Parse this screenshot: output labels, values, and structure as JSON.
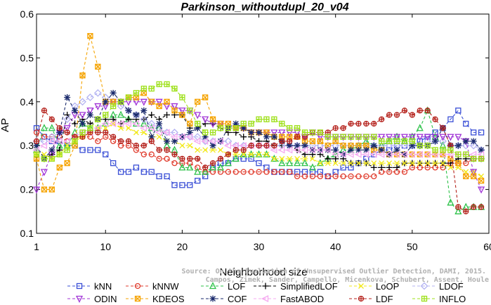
{
  "chart_data": {
    "type": "line",
    "title": "Parkinson_withoutdupl_20_v04",
    "xlabel": "Neighborhood size",
    "ylabel": "AP",
    "xlim": [
      1,
      60
    ],
    "ylim": [
      0.1,
      0.6
    ],
    "xticks": [
      1,
      10,
      20,
      30,
      40,
      50,
      60
    ],
    "yticks": [
      0.1,
      0.2,
      0.3,
      0.4,
      0.5,
      0.6
    ],
    "grid": false,
    "legend_position": "bottom",
    "x": [
      1,
      2,
      3,
      4,
      5,
      6,
      7,
      8,
      9,
      10,
      11,
      12,
      13,
      14,
      15,
      16,
      17,
      18,
      19,
      20,
      21,
      22,
      23,
      24,
      25,
      26,
      27,
      28,
      29,
      30,
      31,
      32,
      33,
      34,
      35,
      36,
      37,
      38,
      39,
      40,
      41,
      42,
      43,
      44,
      45,
      46,
      47,
      48,
      49,
      50,
      51,
      52,
      53,
      54,
      55,
      56,
      57,
      58,
      59
    ],
    "series": [
      {
        "name": "kNN",
        "color": "#3a4fd6",
        "marker": "square",
        "values": [
          0.34,
          0.32,
          0.31,
          0.31,
          0.3,
          0.3,
          0.29,
          0.29,
          0.29,
          0.28,
          0.26,
          0.24,
          0.24,
          0.25,
          0.24,
          0.24,
          0.23,
          0.23,
          0.21,
          0.21,
          0.21,
          0.22,
          0.23,
          0.25,
          0.26,
          0.26,
          0.27,
          0.27,
          0.27,
          0.26,
          0.25,
          0.24,
          0.24,
          0.24,
          0.24,
          0.24,
          0.24,
          0.24,
          0.23,
          0.24,
          0.25,
          0.25,
          0.26,
          0.27,
          0.28,
          0.29,
          0.29,
          0.3,
          0.3,
          0.3,
          0.31,
          0.32,
          0.33,
          0.34,
          0.36,
          0.38,
          0.35,
          0.33,
          0.33
        ]
      },
      {
        "name": "kNNW",
        "color": "#e03b2c",
        "marker": "circle",
        "values": [
          0.33,
          0.32,
          0.32,
          0.32,
          0.31,
          0.32,
          0.32,
          0.32,
          0.31,
          0.32,
          0.31,
          0.3,
          0.3,
          0.29,
          0.28,
          0.28,
          0.27,
          0.27,
          0.26,
          0.26,
          0.26,
          0.25,
          0.24,
          0.24,
          0.24,
          0.24,
          0.24,
          0.24,
          0.24,
          0.24,
          0.24,
          0.24,
          0.24,
          0.24,
          0.23,
          0.23,
          0.23,
          0.23,
          0.23,
          0.23,
          0.23,
          0.23,
          0.23,
          0.23,
          0.23,
          0.24,
          0.24,
          0.24,
          0.24,
          0.25,
          0.25,
          0.25,
          0.25,
          0.25,
          0.26,
          0.26,
          0.26,
          0.27,
          0.27
        ]
      },
      {
        "name": "LOF",
        "color": "#2ec24a",
        "marker": "triangle-up",
        "values": [
          0.29,
          0.34,
          0.34,
          0.3,
          0.3,
          0.33,
          0.35,
          0.34,
          0.34,
          0.35,
          0.37,
          0.37,
          0.36,
          0.35,
          0.35,
          0.34,
          0.34,
          0.3,
          0.29,
          0.25,
          0.25,
          0.24,
          0.24,
          0.25,
          0.25,
          0.26,
          0.27,
          0.28,
          0.28,
          0.28,
          0.28,
          0.27,
          0.26,
          0.26,
          0.26,
          0.26,
          0.25,
          0.26,
          0.27,
          0.28,
          0.29,
          0.29,
          0.3,
          0.31,
          0.3,
          0.3,
          0.31,
          0.32,
          0.31,
          0.32,
          0.34,
          0.38,
          0.32,
          0.3,
          0.17,
          0.15,
          0.16,
          0.16,
          0.16
        ]
      },
      {
        "name": "SimplifiedLOF",
        "color": "#000000",
        "marker": "plus",
        "values": [
          0.3,
          0.27,
          0.28,
          0.29,
          0.37,
          0.35,
          0.36,
          0.35,
          0.36,
          0.36,
          0.36,
          0.35,
          0.36,
          0.36,
          0.36,
          0.37,
          0.36,
          0.37,
          0.37,
          0.37,
          0.34,
          0.34,
          0.35,
          0.35,
          0.34,
          0.33,
          0.33,
          0.32,
          0.32,
          0.31,
          0.31,
          0.3,
          0.3,
          0.3,
          0.29,
          0.28,
          0.28,
          0.28,
          0.27,
          0.27,
          0.27,
          0.26,
          0.26,
          0.26,
          0.25,
          0.25,
          0.25,
          0.25,
          0.26,
          0.26,
          0.26,
          0.26,
          0.26,
          0.26,
          0.26,
          0.27,
          0.27,
          0.27,
          0.27
        ]
      },
      {
        "name": "LoOP",
        "color": "#f2e818",
        "marker": "x",
        "values": [
          0.28,
          0.28,
          0.27,
          0.28,
          0.3,
          0.31,
          0.32,
          0.33,
          0.34,
          0.34,
          0.35,
          0.34,
          0.34,
          0.33,
          0.33,
          0.32,
          0.32,
          0.31,
          0.31,
          0.3,
          0.3,
          0.29,
          0.29,
          0.29,
          0.29,
          0.28,
          0.28,
          0.28,
          0.28,
          0.28,
          0.28,
          0.27,
          0.27,
          0.27,
          0.27,
          0.27,
          0.27,
          0.26,
          0.26,
          0.26,
          0.26,
          0.26,
          0.26,
          0.26,
          0.26,
          0.26,
          0.26,
          0.26,
          0.26,
          0.26,
          0.26,
          0.26,
          0.26,
          0.26,
          0.25,
          0.25,
          0.24,
          0.24,
          0.23
        ]
      },
      {
        "name": "LDOF",
        "color": "#b3b3f2",
        "marker": "diamond",
        "values": [
          0.31,
          0.31,
          0.32,
          0.33,
          0.36,
          0.39,
          0.4,
          0.41,
          0.42,
          0.41,
          0.4,
          0.39,
          0.38,
          0.37,
          0.36,
          0.35,
          0.34,
          0.33,
          0.33,
          0.32,
          0.32,
          0.32,
          0.31,
          0.31,
          0.31,
          0.31,
          0.3,
          0.3,
          0.3,
          0.3,
          0.3,
          0.3,
          0.3,
          0.3,
          0.3,
          0.3,
          0.3,
          0.3,
          0.3,
          0.3,
          0.3,
          0.3,
          0.3,
          0.3,
          0.3,
          0.3,
          0.3,
          0.3,
          0.3,
          0.3,
          0.3,
          0.31,
          0.31,
          0.31,
          0.3,
          0.3,
          0.3,
          0.3,
          0.29
        ]
      },
      {
        "name": "ODIN",
        "color": "#a033d6",
        "marker": "triangle-down",
        "values": [
          0.2,
          0.24,
          0.28,
          0.33,
          0.34,
          0.37,
          0.37,
          0.38,
          0.39,
          0.39,
          0.4,
          0.4,
          0.4,
          0.4,
          0.4,
          0.4,
          0.4,
          0.39,
          0.39,
          0.38,
          0.38,
          0.37,
          0.36,
          0.35,
          0.35,
          0.34,
          0.34,
          0.34,
          0.33,
          0.33,
          0.33,
          0.33,
          0.33,
          0.33,
          0.33,
          0.32,
          0.33,
          0.32,
          0.32,
          0.32,
          0.32,
          0.32,
          0.32,
          0.32,
          0.32,
          0.32,
          0.32,
          0.32,
          0.32,
          0.32,
          0.32,
          0.32,
          0.32,
          0.32,
          0.32,
          0.32,
          0.31,
          0.24,
          0.2
        ]
      },
      {
        "name": "KDEOS",
        "color": "#f5a300",
        "marker": "square-x",
        "values": [
          0.27,
          0.2,
          0.2,
          0.25,
          0.26,
          0.3,
          0.46,
          0.55,
          0.48,
          0.4,
          0.4,
          0.4,
          0.41,
          0.41,
          0.42,
          0.4,
          0.39,
          0.4,
          0.38,
          0.37,
          0.35,
          0.4,
          0.41,
          0.36,
          0.35,
          0.35,
          0.34,
          0.34,
          0.33,
          0.33,
          0.33,
          0.32,
          0.32,
          0.32,
          0.32,
          0.31,
          0.31,
          0.31,
          0.3,
          0.31,
          0.3,
          0.3,
          0.3,
          0.3,
          0.29,
          0.29,
          0.28,
          0.28,
          0.28,
          0.28,
          0.28,
          0.28,
          0.28,
          0.28,
          0.27,
          0.26,
          0.23,
          0.23,
          0.22
        ]
      },
      {
        "name": "COF",
        "color": "#1a2a6c",
        "marker": "star",
        "values": [
          0.3,
          0.27,
          0.29,
          0.33,
          0.41,
          0.38,
          0.35,
          0.37,
          0.36,
          0.4,
          0.42,
          0.4,
          0.38,
          0.37,
          0.38,
          0.32,
          0.35,
          0.31,
          0.31,
          0.32,
          0.33,
          0.34,
          0.32,
          0.3,
          0.31,
          0.34,
          0.35,
          0.34,
          0.33,
          0.33,
          0.32,
          0.32,
          0.31,
          0.3,
          0.3,
          0.3,
          0.29,
          0.29,
          0.29,
          0.29,
          0.28,
          0.29,
          0.29,
          0.29,
          0.3,
          0.29,
          0.28,
          0.29,
          0.28,
          0.3,
          0.3,
          0.3,
          0.31,
          0.34,
          0.3,
          0.3,
          0.31,
          0.31,
          0.29
        ]
      },
      {
        "name": "FastABOD",
        "color": "#f5aaf0",
        "marker": "triangle-left",
        "values": [
          0.29,
          0.3,
          0.31,
          0.31,
          0.31,
          0.32,
          0.33,
          0.33,
          0.34,
          0.35,
          0.35,
          0.35,
          0.35,
          0.35,
          0.34,
          0.34,
          0.33,
          0.33,
          0.32,
          0.32,
          0.32,
          0.31,
          0.31,
          0.31,
          0.31,
          0.3,
          0.3,
          0.3,
          0.3,
          0.3,
          0.3,
          0.29,
          0.29,
          0.29,
          0.29,
          0.29,
          0.29,
          0.29,
          0.29,
          0.28,
          0.28,
          0.28,
          0.28,
          0.28,
          0.28,
          0.28,
          0.28,
          0.28,
          0.28,
          0.28,
          0.28,
          0.28,
          0.28,
          0.28,
          0.28,
          0.28,
          0.28,
          0.28,
          0.28
        ]
      },
      {
        "name": "LDF",
        "color": "#b5221c",
        "marker": "circle-plus",
        "values": [
          0.31,
          0.38,
          0.36,
          0.34,
          0.33,
          0.32,
          0.32,
          0.33,
          0.33,
          0.33,
          0.32,
          0.31,
          0.31,
          0.3,
          0.3,
          0.31,
          0.29,
          0.29,
          0.28,
          0.27,
          0.27,
          0.27,
          0.25,
          0.26,
          0.27,
          0.28,
          0.29,
          0.29,
          0.3,
          0.3,
          0.3,
          0.3,
          0.31,
          0.31,
          0.32,
          0.32,
          0.33,
          0.33,
          0.33,
          0.34,
          0.34,
          0.35,
          0.35,
          0.35,
          0.35,
          0.36,
          0.37,
          0.37,
          0.38,
          0.37,
          0.38,
          0.38,
          0.36,
          0.34,
          0.3,
          0.16,
          0.15,
          0.16,
          0.16
        ]
      },
      {
        "name": "INFLO",
        "color": "#9ee01a",
        "marker": "square-cross",
        "values": [
          0.28,
          0.27,
          0.27,
          0.28,
          0.29,
          0.31,
          0.33,
          0.34,
          0.36,
          0.37,
          0.39,
          0.4,
          0.41,
          0.42,
          0.43,
          0.43,
          0.44,
          0.44,
          0.43,
          0.41,
          0.38,
          0.35,
          0.33,
          0.33,
          0.34,
          0.34,
          0.34,
          0.35,
          0.35,
          0.36,
          0.36,
          0.36,
          0.35,
          0.34,
          0.34,
          0.33,
          0.33,
          0.33,
          0.32,
          0.32,
          0.32,
          0.32,
          0.32,
          0.32,
          0.32,
          0.31,
          0.31,
          0.31,
          0.31,
          0.31,
          0.3,
          0.3,
          0.29,
          0.29,
          0.29,
          0.28,
          0.28,
          0.27,
          0.27
        ]
      }
    ]
  },
  "watermark": {
    "line1": "Source: On the Evaluation of Unsupervised Outlier Detection, DAMI, 2015.",
    "line2": "Campos, Zimek, Sander, Campello, Micenkova, Schubert, Assent, Houle"
  }
}
